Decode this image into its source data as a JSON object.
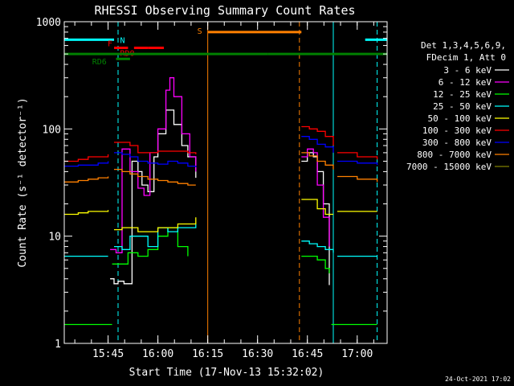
{
  "chart_data": {
    "type": "line",
    "title": "RHESSI Observing Summary Count Rates",
    "xlabel": "Start Time (17-Nov-13 15:32:02)",
    "ylabel": "Count Rate (s⁻¹ detector⁻¹)",
    "y_scale": "log",
    "ylim": [
      1,
      1000
    ],
    "xlim_minutes": [
      15.53,
      17.15
    ],
    "y_ticks": [
      {
        "value": 1,
        "label": "1"
      },
      {
        "value": 10,
        "label": "10"
      },
      {
        "value": 100,
        "label": "100"
      },
      {
        "value": 1000,
        "label": "1000"
      }
    ],
    "x_ticks": [
      {
        "value": 15.75,
        "label": "15:45"
      },
      {
        "value": 16.0,
        "label": "16:00"
      },
      {
        "value": 16.25,
        "label": "16:15"
      },
      {
        "value": 16.5,
        "label": "16:30"
      },
      {
        "value": 16.75,
        "label": "16:45"
      },
      {
        "value": 17.0,
        "label": "17:00"
      }
    ],
    "info_lines": [
      "Det 1,3,4,5,6,9,",
      "FDecim 1, Att 0"
    ],
    "legend": [
      {
        "label": "3 - 6 keV",
        "color": "#ffffff"
      },
      {
        "label": "6 - 12 keV",
        "color": "#ff00ff"
      },
      {
        "label": "12 - 25 keV",
        "color": "#00ff00"
      },
      {
        "label": "25 - 50 keV",
        "color": "#00ffff"
      },
      {
        "label": "50 - 100 keV",
        "color": "#ffff00"
      },
      {
        "label": "100 - 300 keV",
        "color": "#ff0000"
      },
      {
        "label": "300 - 800 keV",
        "color": "#0000ff"
      },
      {
        "label": "800 - 7000 keV",
        "color": "#ff8000"
      },
      {
        "label": "7000 - 15000 keV",
        "color": "#808000"
      }
    ],
    "flag_bars": [
      {
        "label": "N",
        "color": "#00ffff",
        "segments": [
          [
            15.53,
            15.78
          ],
          [
            17.04,
            17.15
          ]
        ],
        "level": 680
      },
      {
        "label": "F",
        "color": "#ff0000",
        "segments": [
          [
            15.78,
            15.85
          ],
          [
            15.95,
            16.03
          ]
        ],
        "level": 570
      },
      {
        "label": "RD0",
        "color": "#ff0000",
        "segments": [
          [
            15.88,
            15.95
          ]
        ],
        "level": 570
      },
      {
        "label": "RD6",
        "color": "#008000",
        "segments": [
          [
            15.53,
            16.55
          ],
          [
            16.55,
            17.15
          ]
        ],
        "level": 500
      },
      {
        "label": "RD6-sub",
        "color": "#008000",
        "segments": [
          [
            15.79,
            15.86
          ]
        ],
        "level": 450
      },
      {
        "label": "S",
        "color": "#ff8000",
        "segments": [
          [
            16.25,
            16.72
          ]
        ],
        "level": 800
      }
    ],
    "vlines": [
      {
        "x": 15.53,
        "color": "#00ffff",
        "style": "solid"
      },
      {
        "x": 15.8,
        "color": "#00ffff",
        "style": "dashed"
      },
      {
        "x": 16.25,
        "color": "#ff8000",
        "style": "solid"
      },
      {
        "x": 16.71,
        "color": "#ff8000",
        "style": "dashed"
      },
      {
        "x": 16.88,
        "color": "#00ffff",
        "style": "solid"
      },
      {
        "x": 17.1,
        "color": "#00ffff",
        "style": "dashed"
      }
    ],
    "series": [
      {
        "name": "3 - 6 keV",
        "color": "#ffffff",
        "segments": [
          {
            "x": [
              15.76,
              15.78,
              15.8,
              15.83,
              15.87,
              15.9,
              15.92,
              15.95,
              15.98,
              16.0,
              16.04,
              16.08,
              16.12,
              16.15,
              16.19
            ],
            "y": [
              4,
              3.6,
              3.8,
              3.6,
              50,
              40,
              30,
              26,
              55,
              90,
              150,
              110,
              70,
              55,
              35
            ]
          },
          {
            "x": [
              16.72,
              16.75,
              16.78,
              16.8,
              16.83,
              16.86
            ],
            "y": [
              50,
              60,
              55,
              40,
              20,
              3.5
            ]
          }
        ]
      },
      {
        "name": "6 - 12 keV",
        "color": "#ff00ff",
        "segments": [
          {
            "x": [
              15.76,
              15.79,
              15.82,
              15.86,
              15.9,
              15.93,
              15.96,
              16.0,
              16.04,
              16.06,
              16.08,
              16.12,
              16.16,
              16.19
            ],
            "y": [
              7.5,
              7,
              65,
              40,
              28,
              24,
              60,
              100,
              230,
              300,
              200,
              90,
              55,
              40
            ]
          },
          {
            "x": [
              16.72,
              16.75,
              16.78,
              16.8,
              16.83,
              16.86
            ],
            "y": [
              55,
              65,
              60,
              30,
              15,
              8
            ]
          }
        ]
      },
      {
        "name": "12 - 25 keV",
        "color": "#00ff00",
        "segments": [
          {
            "x": [
              15.53,
              15.7,
              15.75,
              15.77
            ],
            "y": [
              1.5,
              1.5,
              1.5,
              1.5
            ]
          },
          {
            "x": [
              15.77,
              15.8,
              15.85,
              15.9,
              15.95,
              16.0,
              16.05,
              16.1,
              16.15
            ],
            "y": [
              5.5,
              5.5,
              7,
              6.5,
              7.5,
              10,
              12,
              8,
              6.5
            ]
          },
          {
            "x": [
              16.72,
              16.76,
              16.8,
              16.84,
              16.86
            ],
            "y": [
              6.5,
              6.5,
              6,
              5,
              4.5
            ]
          },
          {
            "x": [
              16.87,
              16.95,
              17.05,
              17.1
            ],
            "y": [
              1.5,
              1.5,
              1.5,
              1.5
            ]
          }
        ]
      },
      {
        "name": "25 - 50 keV",
        "color": "#00ffff",
        "segments": [
          {
            "x": [
              15.53,
              15.6,
              15.65,
              15.7,
              15.75
            ],
            "y": [
              6.5,
              6.5,
              6.5,
              6.5,
              6.5
            ]
          },
          {
            "x": [
              15.78,
              15.82,
              15.86,
              15.9,
              15.95,
              16.0,
              16.05,
              16.1,
              16.15,
              16.19
            ],
            "y": [
              8,
              7.5,
              10,
              10,
              8,
              12,
              11,
              12,
              12,
              13
            ]
          },
          {
            "x": [
              16.72,
              16.76,
              16.8,
              16.84,
              16.88
            ],
            "y": [
              9,
              8.5,
              8,
              7.5,
              7
            ]
          },
          {
            "x": [
              16.9,
              17.0,
              17.1
            ],
            "y": [
              6.5,
              6.5,
              6.5
            ]
          }
        ]
      },
      {
        "name": "50 - 100 keV",
        "color": "#ffff00",
        "segments": [
          {
            "x": [
              15.53,
              15.6,
              15.65,
              15.7,
              15.75
            ],
            "y": [
              16,
              16.5,
              17,
              17,
              17.5
            ]
          },
          {
            "x": [
              15.78,
              15.82,
              15.86,
              15.9,
              15.95,
              16.0,
              16.05,
              16.1,
              16.15,
              16.19
            ],
            "y": [
              11.5,
              12,
              12,
              11,
              11,
              12,
              12,
              13,
              13,
              15
            ]
          },
          {
            "x": [
              16.72,
              16.76,
              16.8,
              16.84,
              16.88
            ],
            "y": [
              22,
              22,
              18,
              16,
              16
            ]
          },
          {
            "x": [
              16.9,
              17.0,
              17.1
            ],
            "y": [
              17,
              17,
              17
            ]
          }
        ]
      },
      {
        "name": "100 - 300 keV",
        "color": "#ff0000",
        "segments": [
          {
            "x": [
              15.53,
              15.6,
              15.65,
              15.7,
              15.75
            ],
            "y": [
              50,
              52,
              55,
              55,
              58
            ]
          },
          {
            "x": [
              15.78,
              15.82,
              15.86,
              15.9,
              15.95,
              16.0,
              16.05,
              16.1,
              16.15,
              16.19
            ],
            "y": [
              75,
              75,
              70,
              60,
              60,
              62,
              62,
              62,
              60,
              58
            ]
          },
          {
            "x": [
              16.72,
              16.76,
              16.8,
              16.84,
              16.88
            ],
            "y": [
              105,
              100,
              95,
              85,
              70
            ]
          },
          {
            "x": [
              16.9,
              17.0,
              17.1
            ],
            "y": [
              60,
              55,
              52
            ]
          }
        ]
      },
      {
        "name": "300 - 800 keV",
        "color": "#0000ff",
        "segments": [
          {
            "x": [
              15.53,
              15.6,
              15.65,
              15.7,
              15.75
            ],
            "y": [
              45,
              46,
              46,
              48,
              50
            ]
          },
          {
            "x": [
              15.78,
              15.82,
              15.86,
              15.9,
              15.95,
              16.0,
              16.05,
              16.1,
              16.15,
              16.19
            ],
            "y": [
              60,
              58,
              55,
              50,
              48,
              47,
              50,
              48,
              45,
              44
            ]
          },
          {
            "x": [
              16.72,
              16.76,
              16.8,
              16.84,
              16.88
            ],
            "y": [
              85,
              80,
              72,
              68,
              60
            ]
          },
          {
            "x": [
              16.9,
              17.0,
              17.1
            ],
            "y": [
              50,
              48,
              46
            ]
          }
        ]
      },
      {
        "name": "800 - 7000 keV",
        "color": "#ff8000",
        "segments": [
          {
            "x": [
              15.53,
              15.6,
              15.65,
              15.7,
              15.75
            ],
            "y": [
              32,
              33,
              34,
              35,
              36
            ]
          },
          {
            "x": [
              15.78,
              15.82,
              15.86,
              15.9,
              15.95,
              16.0,
              16.05,
              16.1,
              16.15,
              16.19
            ],
            "y": [
              42,
              40,
              38,
              36,
              34,
              33,
              32,
              31,
              30,
              30
            ]
          },
          {
            "x": [
              16.72,
              16.76,
              16.8,
              16.84,
              16.88
            ],
            "y": [
              60,
              56,
              50,
              46,
              42
            ]
          },
          {
            "x": [
              16.9,
              17.0,
              17.1
            ],
            "y": [
              36,
              34,
              32
            ]
          }
        ]
      },
      {
        "name": "7000 - 15000 keV",
        "color": "#808000",
        "segments": []
      }
    ],
    "footer_date": "24-Oct-2021 17:02"
  }
}
